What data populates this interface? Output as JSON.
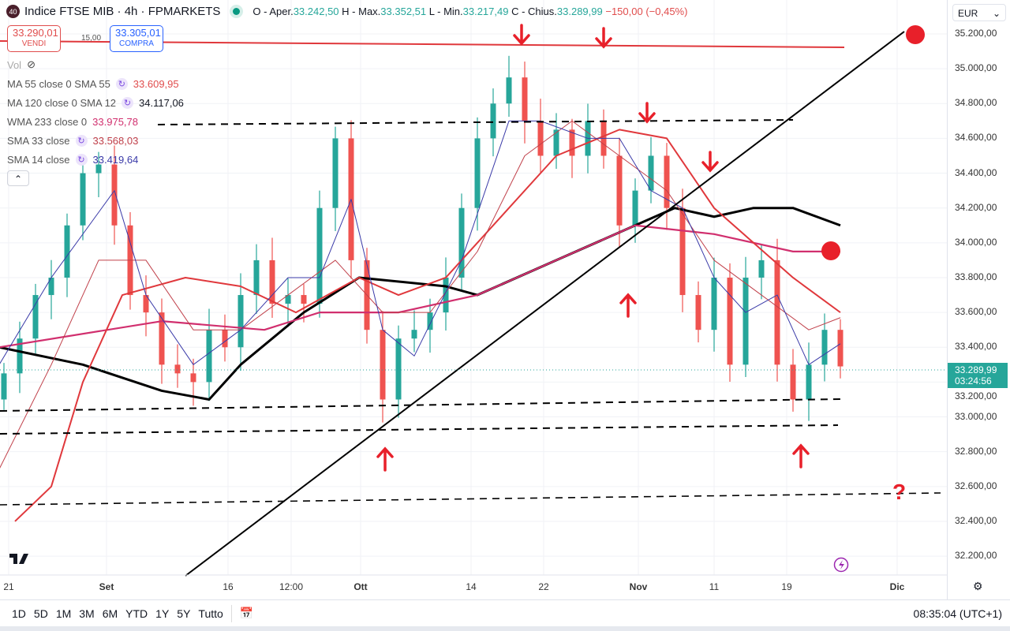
{
  "header": {
    "badge": "40",
    "title": "Indice FTSE MIB · 4h · FPMARKETS",
    "o_label": "O - Aper.",
    "o": "33.242,50",
    "h_label": "H - Max.",
    "h": "33.352,51",
    "l_label": "L - Min.",
    "l": "33.217,49",
    "c_label": "C - Chius.",
    "c": "33.289,99",
    "change": "−150,00 (−0,45%)"
  },
  "trade": {
    "sell_price": "33.290,01",
    "sell_label": "VENDI",
    "spread": "15,00",
    "buy_price": "33.305,01",
    "buy_label": "COMPRA"
  },
  "indicators": {
    "vol": "Vol",
    "items": [
      {
        "label": "MA 55 close 0 SMA 55",
        "value": "33.609,95",
        "color": "#e04c4c"
      },
      {
        "label": "MA 120 close 0 SMA 12",
        "value": "34.117,06",
        "color": "#131722"
      },
      {
        "label": "WMA 233 close 0",
        "value": "33.975,78",
        "color": "#d12f6e"
      },
      {
        "label": "SMA 33 close",
        "value": "33.568,03",
        "color": "#c0404a"
      },
      {
        "label": "SMA 14 close",
        "value": "33.419,64",
        "color": "#3a3aa8"
      }
    ]
  },
  "currency": "EUR",
  "current_price": {
    "price": "33.289,99",
    "countdown": "03:24:56"
  },
  "bottom": {
    "ranges": [
      "1D",
      "5D",
      "1M",
      "3M",
      "6M",
      "YTD",
      "1Y",
      "5Y",
      "Tutto"
    ],
    "clock": "08:35:04 (UTC+1)"
  },
  "annotation": {
    "question": "?"
  },
  "chart_data": {
    "type": "candlestick",
    "title": "Indice FTSE MIB · 4h · FPMARKETS",
    "ylim": [
      32100,
      35350
    ],
    "y_ticks": [
      "35.200,00",
      "35.000,00",
      "34.800,00",
      "34.600,00",
      "34.400,00",
      "34.200,00",
      "34.000,00",
      "33.800,00",
      "33.600,00",
      "33.400,00",
      "33.200,00",
      "33.000,00",
      "32.800,00",
      "32.600,00",
      "32.400,00",
      "32.200,00"
    ],
    "y_tick_values": [
      35200,
      35000,
      34800,
      34600,
      34400,
      34200,
      34000,
      33800,
      33600,
      33400,
      33200,
      33000,
      32800,
      32600,
      32400,
      32200
    ],
    "x_ticks": [
      {
        "label": "21",
        "i": -0.1
      },
      {
        "label": "Set",
        "i": 6.1
      },
      {
        "label": "16",
        "i": 13.8
      },
      {
        "label": "12:00",
        "i": 17.8
      },
      {
        "label": "Ott",
        "i": 22.2
      },
      {
        "label": "14",
        "i": 29.2
      },
      {
        "label": "22",
        "i": 33.8
      },
      {
        "label": "Nov",
        "i": 39.8
      },
      {
        "label": "11",
        "i": 44.6
      },
      {
        "label": "19",
        "i": 49.2
      },
      {
        "label": "Dic",
        "i": 56.2
      }
    ],
    "closes": [
      33250,
      33450,
      33700,
      33800,
      34100,
      34400,
      34450,
      34100,
      33700,
      33600,
      33300,
      33250,
      33200,
      33500,
      33400,
      33700,
      33900,
      33650,
      33700,
      33650,
      34200,
      34600,
      33900,
      33500,
      33100,
      33450,
      33500,
      33600,
      33800,
      34200,
      34600,
      34800,
      34950,
      34700,
      34500,
      34650,
      34500,
      34700,
      34500,
      34100,
      34300,
      34500,
      34200,
      33700,
      33500,
      33800,
      33300,
      33800,
      33900,
      33300,
      33100,
      33300,
      33500,
      33290
    ],
    "first_open": 33100,
    "series": [
      {
        "name": "MA 120",
        "color": "#000000",
        "width": 3,
        "points": [
          [
            -0.3,
            33400
          ],
          [
            5,
            33300
          ],
          [
            10,
            33150
          ],
          [
            13,
            33100
          ],
          [
            15,
            33300
          ],
          [
            19,
            33600
          ],
          [
            22.5,
            33800
          ],
          [
            28,
            33750
          ],
          [
            30,
            33700
          ],
          [
            35,
            33900
          ],
          [
            40,
            34100
          ],
          [
            42.5,
            34200
          ],
          [
            45,
            34150
          ],
          [
            47.5,
            34200
          ],
          [
            50,
            34200
          ],
          [
            53,
            34100
          ]
        ]
      },
      {
        "name": "WMA 233",
        "color": "#d12f6e",
        "width": 2.2,
        "points": [
          [
            -0.3,
            33400
          ],
          [
            10,
            33550
          ],
          [
            16.5,
            33500
          ],
          [
            20,
            33600
          ],
          [
            25,
            33600
          ],
          [
            30,
            33700
          ],
          [
            35,
            33900
          ],
          [
            40,
            34100
          ],
          [
            45,
            34050
          ],
          [
            50,
            33950
          ],
          [
            53,
            33950
          ]
        ]
      },
      {
        "name": "MA 55",
        "color": "#e0383c",
        "width": 2,
        "points": [
          [
            0.7,
            32400
          ],
          [
            3,
            32600
          ],
          [
            5,
            33200
          ],
          [
            7.5,
            33700
          ],
          [
            11.5,
            33800
          ],
          [
            15,
            33750
          ],
          [
            18.5,
            33600
          ],
          [
            22.5,
            33800
          ],
          [
            25,
            33700
          ],
          [
            28,
            33800
          ],
          [
            32,
            34200
          ],
          [
            35,
            34500
          ],
          [
            39,
            34650
          ],
          [
            42,
            34600
          ],
          [
            45,
            34200
          ],
          [
            47.5,
            34000
          ],
          [
            50,
            33800
          ],
          [
            53,
            33600
          ]
        ]
      },
      {
        "name": "SMA 33",
        "color": "#c0404a",
        "width": 1,
        "points": [
          [
            -0.3,
            32700
          ],
          [
            3,
            33300
          ],
          [
            6,
            33900
          ],
          [
            9,
            33900
          ],
          [
            12,
            33500
          ],
          [
            15,
            33500
          ],
          [
            18,
            33700
          ],
          [
            21,
            33900
          ],
          [
            24,
            33600
          ],
          [
            27,
            33600
          ],
          [
            30,
            33950
          ],
          [
            33,
            34500
          ],
          [
            36,
            34700
          ],
          [
            39,
            34500
          ],
          [
            42,
            34300
          ],
          [
            45,
            33900
          ],
          [
            48,
            33700
          ],
          [
            51,
            33500
          ],
          [
            53,
            33570
          ]
        ]
      },
      {
        "name": "SMA 14",
        "color": "#3a3aa8",
        "width": 1,
        "points": [
          [
            -0.3,
            33300
          ],
          [
            3,
            33800
          ],
          [
            7,
            34300
          ],
          [
            9,
            33700
          ],
          [
            12,
            33300
          ],
          [
            15,
            33500
          ],
          [
            18,
            33800
          ],
          [
            20,
            33800
          ],
          [
            22,
            34250
          ],
          [
            24,
            33500
          ],
          [
            26,
            33350
          ],
          [
            29,
            33900
          ],
          [
            32,
            34700
          ],
          [
            34,
            34700
          ],
          [
            37,
            34600
          ],
          [
            39,
            34600
          ],
          [
            41,
            34300
          ],
          [
            43,
            34200
          ],
          [
            45,
            33800
          ],
          [
            47,
            33600
          ],
          [
            49,
            33700
          ],
          [
            51,
            33300
          ],
          [
            53,
            33420
          ]
        ]
      }
    ]
  }
}
